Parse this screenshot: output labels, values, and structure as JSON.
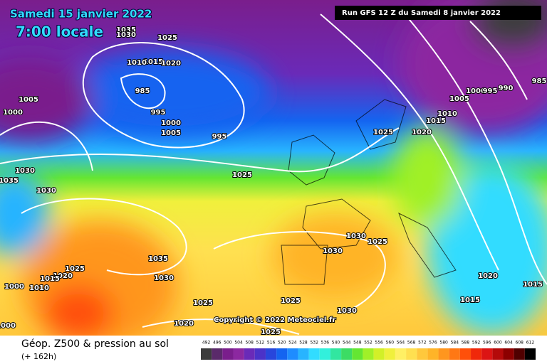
{
  "header": {
    "date": "Samedi 15 janvier 2022",
    "time": "7:00 locale",
    "run": "Run GFS 12 Z du Samedi 8 janvier 2022"
  },
  "copyright": "Copyright © 2022 Meteociel.fr",
  "footer": {
    "title": "Géop. Z500 & pression au sol",
    "lead": "(+ 162h)"
  },
  "isobars": [
    1035,
    1030,
    1025,
    1015,
    1010,
    1020,
    985,
    1005,
    995,
    1000,
    1000,
    1005,
    995,
    1030,
    1025,
    1035,
    1030,
    1025,
    1020,
    1015,
    1010,
    1005,
    1000,
    995,
    990,
    985,
    1030,
    1025,
    1030,
    1035,
    1025,
    1020,
    1015,
    1030,
    1000,
    1010,
    1025,
    1025,
    1020,
    1015,
    1015,
    1030,
    1020,
    1025,
    1000
  ],
  "scale": {
    "labels": [
      492,
      496,
      500,
      504,
      508,
      512,
      516,
      520,
      524,
      528,
      532,
      536,
      540,
      544,
      548,
      552,
      556,
      560,
      564,
      568,
      572,
      576,
      580,
      584,
      588,
      592,
      596,
      600,
      604,
      608,
      612
    ],
    "colors": [
      "#3c3c3c",
      "#5a2a6a",
      "#7a1e8c",
      "#8c28a0",
      "#6a2ab8",
      "#4b32c8",
      "#2846dc",
      "#1464f0",
      "#1e8cff",
      "#28b4ff",
      "#32dcff",
      "#32f0dc",
      "#32e6a0",
      "#3cdc64",
      "#64e632",
      "#a0f028",
      "#d2f028",
      "#f0f03c",
      "#fff064",
      "#ffe050",
      "#ffc83c",
      "#ffb428",
      "#ff961e",
      "#ff7814",
      "#ff500a",
      "#f0280a",
      "#dc1414",
      "#b40a0a",
      "#8c0000",
      "#500000",
      "#000000"
    ]
  }
}
